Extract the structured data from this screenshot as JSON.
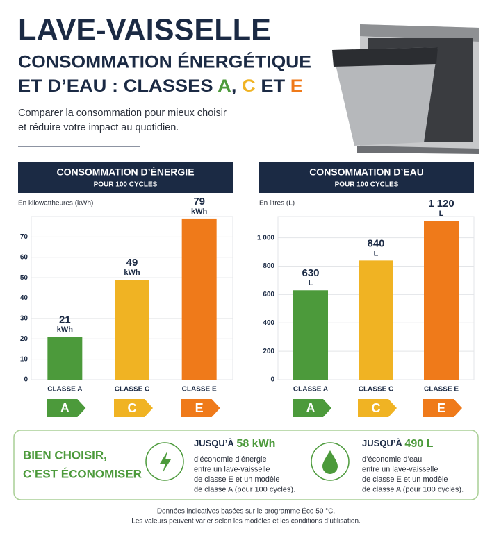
{
  "header": {
    "title": "LAVE-VAISSELLE",
    "subtitle_line1": "CONSOMMATION ÉNERGÉTIQUE",
    "subtitle_line2_parts": [
      "ET D’EAU : CLASSES ",
      "A",
      ", ",
      "C",
      " ET ",
      "E"
    ],
    "intro": [
      "Comparer la consommation pour mieux choisir",
      "et réduire votre impact au quotidien."
    ]
  },
  "chart_data": [
    {
      "type": "bar",
      "title": "CONSOMMATION D’ÉNERGIE",
      "subtitle": "POUR 100 CYCLES",
      "y_axis_label": "En kilowattheures (kWh)",
      "categories": [
        "CLASSE A",
        "CLASSE C",
        "CLASSE E"
      ],
      "badges": [
        "A",
        "C",
        "E"
      ],
      "values": [
        21,
        49,
        79
      ],
      "value_unit": "kWh",
      "colors": [
        "#4c9a3b",
        "#f0b323",
        "#ef7a1a"
      ],
      "ylim": [
        0,
        80
      ],
      "yticks": [
        0,
        10,
        20,
        30,
        40,
        50,
        60,
        70
      ],
      "grid": true
    },
    {
      "type": "bar",
      "title": "CONSOMMATION D’EAU",
      "subtitle": "POUR 100 CYCLES",
      "y_axis_label": "En litres (L)",
      "categories": [
        "CLASSE A",
        "CLASSE C",
        "CLASSE E"
      ],
      "badges": [
        "A",
        "C",
        "E"
      ],
      "values": [
        630,
        840,
        1120
      ],
      "value_labels": [
        "630",
        "840",
        "1 120"
      ],
      "value_unit": "L",
      "colors": [
        "#4c9a3b",
        "#f0b323",
        "#ef7a1a"
      ],
      "ylim": [
        0,
        1150
      ],
      "yticks": [
        0,
        200,
        400,
        600,
        800,
        {
          "value": 1000,
          "label": "1 000"
        }
      ],
      "grid": true
    }
  ],
  "savings": {
    "heading": [
      "BIEN CHOISIR,",
      "C’EST ÉCONOMISER"
    ],
    "items": [
      {
        "prefix": "JUSQU’À",
        "amount": "58 kWh",
        "lines": [
          "d’économie d’énergie",
          "entre un lave-vaisselle",
          "de classe E et un modèle",
          "de classe A (pour 100 cycles)."
        ]
      },
      {
        "prefix": "JUSQU’À",
        "amount": "490 L",
        "lines": [
          "d’économie d’eau",
          "entre un lave-vaisselle",
          "de classe E et un modèle",
          "de classe A (pour 100 cycles)."
        ]
      }
    ]
  },
  "footer": [
    "Données indicatives basées sur le programme Éco 50 °C.",
    "Les valeurs peuvent varier selon les modèles et les conditions d’utilisation."
  ]
}
